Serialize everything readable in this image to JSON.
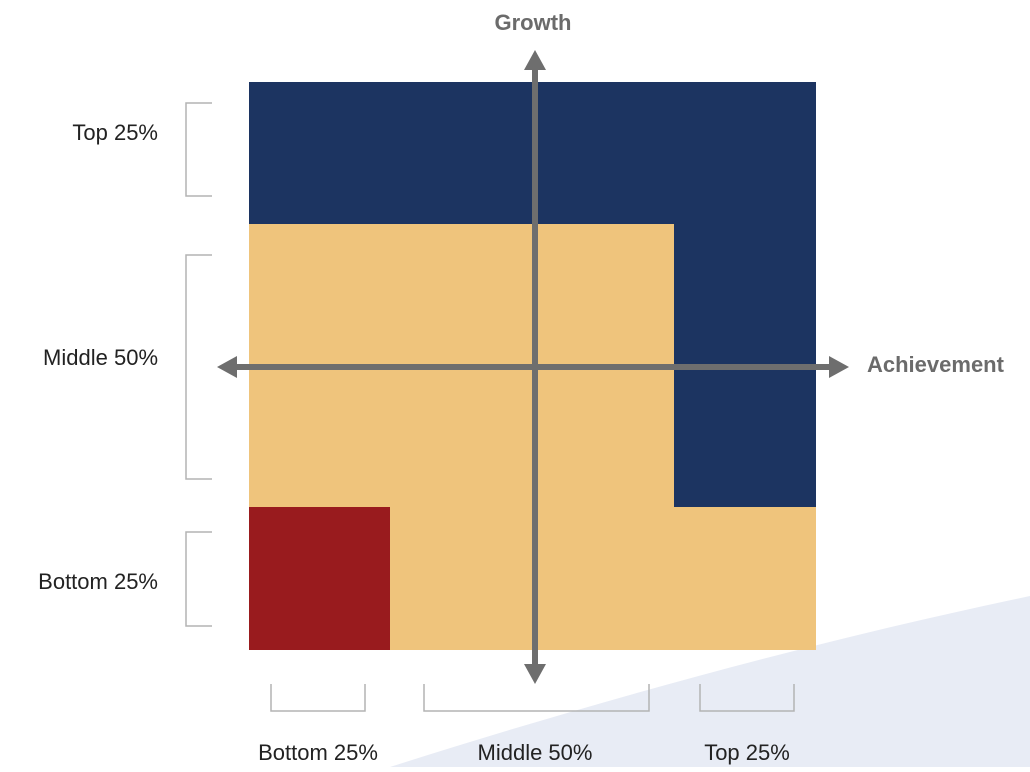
{
  "axes": {
    "vertical_label": "Growth",
    "horizontal_label": "Achievement",
    "axis_color": "#6e6e6e"
  },
  "row_labels": {
    "top": "Top 25%",
    "middle": "Middle 50%",
    "bottom": "Bottom 25%"
  },
  "column_labels": {
    "bottom": "Bottom 25%",
    "middle": "Middle 50%",
    "top": "Top 25%"
  },
  "colors": {
    "high_region": "#1c3461",
    "middle_region": "#efc47c",
    "low_region": "#991b1e",
    "bracket": "#b3b3b3",
    "label_text": "#222222",
    "axis_label_text": "#6b6b6b",
    "watermark_band": "#e8ecf5"
  }
}
